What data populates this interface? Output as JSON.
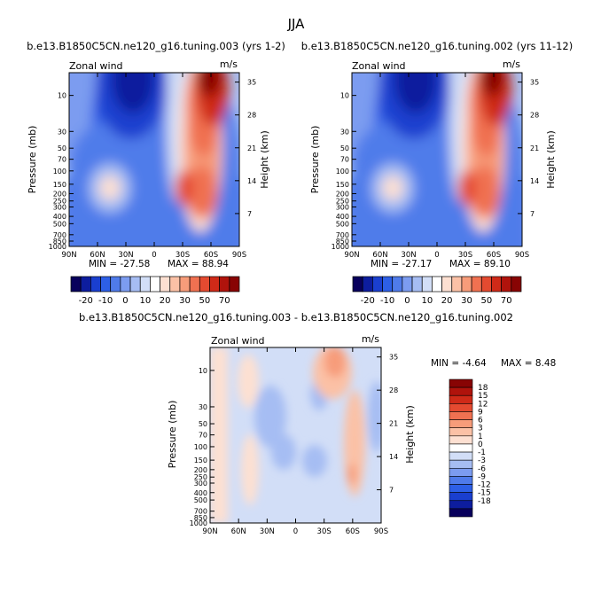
{
  "figure": {
    "title": "JJA"
  },
  "chart_data": [
    {
      "type": "heatmap",
      "title": "b.e13.B1850C5CN.ne120_g16.tuning.003 (yrs 1-2)",
      "left_label": "Zonal wind",
      "units": "m/s",
      "ylabel": "Pressure (mb)",
      "y2label": "Height (km)",
      "x_ticks": [
        "90N",
        "60N",
        "30N",
        "0",
        "30S",
        "60S",
        "90S"
      ],
      "y_ticks": [
        "10",
        "30",
        "50",
        "70",
        "100",
        "150",
        "200",
        "250",
        "300",
        "400",
        "500",
        "700",
        "850",
        "1000"
      ],
      "y2_ticks": [
        "35",
        "28",
        "21",
        "14",
        "7"
      ],
      "min_text": "MIN = -27.58",
      "max_text": "MAX = 88.94",
      "min": -27.58,
      "max": 88.94
    },
    {
      "type": "heatmap",
      "title": "b.e13.B1850C5CN.ne120_g16.tuning.002 (yrs 11-12)",
      "left_label": "Zonal wind",
      "units": "m/s",
      "ylabel": "Pressure (mb)",
      "y2label": "Height (km)",
      "x_ticks": [
        "90N",
        "60N",
        "30N",
        "0",
        "30S",
        "60S",
        "90S"
      ],
      "y_ticks": [
        "10",
        "30",
        "50",
        "70",
        "100",
        "150",
        "200",
        "250",
        "300",
        "400",
        "500",
        "700",
        "850",
        "1000"
      ],
      "y2_ticks": [
        "35",
        "28",
        "21",
        "14",
        "7"
      ],
      "min_text": "MIN = -27.17",
      "max_text": "MAX = 89.10",
      "min": -27.17,
      "max": 89.1
    },
    {
      "type": "heatmap",
      "title": "b.e13.B1850C5CN.ne120_g16.tuning.003 - b.e13.B1850C5CN.ne120_g16.tuning.002",
      "left_label": "Zonal wind",
      "units": "m/s",
      "ylabel": "Pressure (mb)",
      "y2label": "Height (km)",
      "x_ticks": [
        "90N",
        "60N",
        "30N",
        "0",
        "30S",
        "60S",
        "90S"
      ],
      "y_ticks": [
        "10",
        "30",
        "50",
        "70",
        "100",
        "150",
        "200",
        "250",
        "300",
        "400",
        "500",
        "700",
        "850",
        "1000"
      ],
      "y2_ticks": [
        "35",
        "28",
        "21",
        "14",
        "7"
      ],
      "min_text": "MIN = -4.64",
      "max_text": "MAX = 8.48",
      "min": -4.64,
      "max": 8.48
    }
  ],
  "colorbar_top": {
    "labels": [
      "-20",
      "-10",
      "0",
      "10",
      "20",
      "30",
      "50",
      "70"
    ],
    "colors": [
      "#08005c",
      "#0d1d9e",
      "#1a3fcf",
      "#2d5fe6",
      "#4f7bea",
      "#7c9cf0",
      "#a6bdf3",
      "#d2def7",
      "#ffffff",
      "#fde0d2",
      "#fbc1a6",
      "#f79c7a",
      "#f07151",
      "#e44a30",
      "#cf2a18",
      "#b0130c",
      "#880404"
    ]
  },
  "colorbar_diff": {
    "labels": [
      "18",
      "15",
      "12",
      "9",
      "6",
      "3",
      "1",
      "0",
      "-1",
      "-3",
      "-6",
      "-9",
      "-12",
      "-15",
      "-18"
    ],
    "colors": [
      "#880404",
      "#b0130c",
      "#cf2a18",
      "#e44a30",
      "#f07151",
      "#f79c7a",
      "#fbc1a6",
      "#fde0d2",
      "#ffffff",
      "#d2def7",
      "#a6bdf3",
      "#7c9cf0",
      "#4f7bea",
      "#2d5fe6",
      "#1a3fcf",
      "#0d1d9e",
      "#08005c"
    ]
  }
}
